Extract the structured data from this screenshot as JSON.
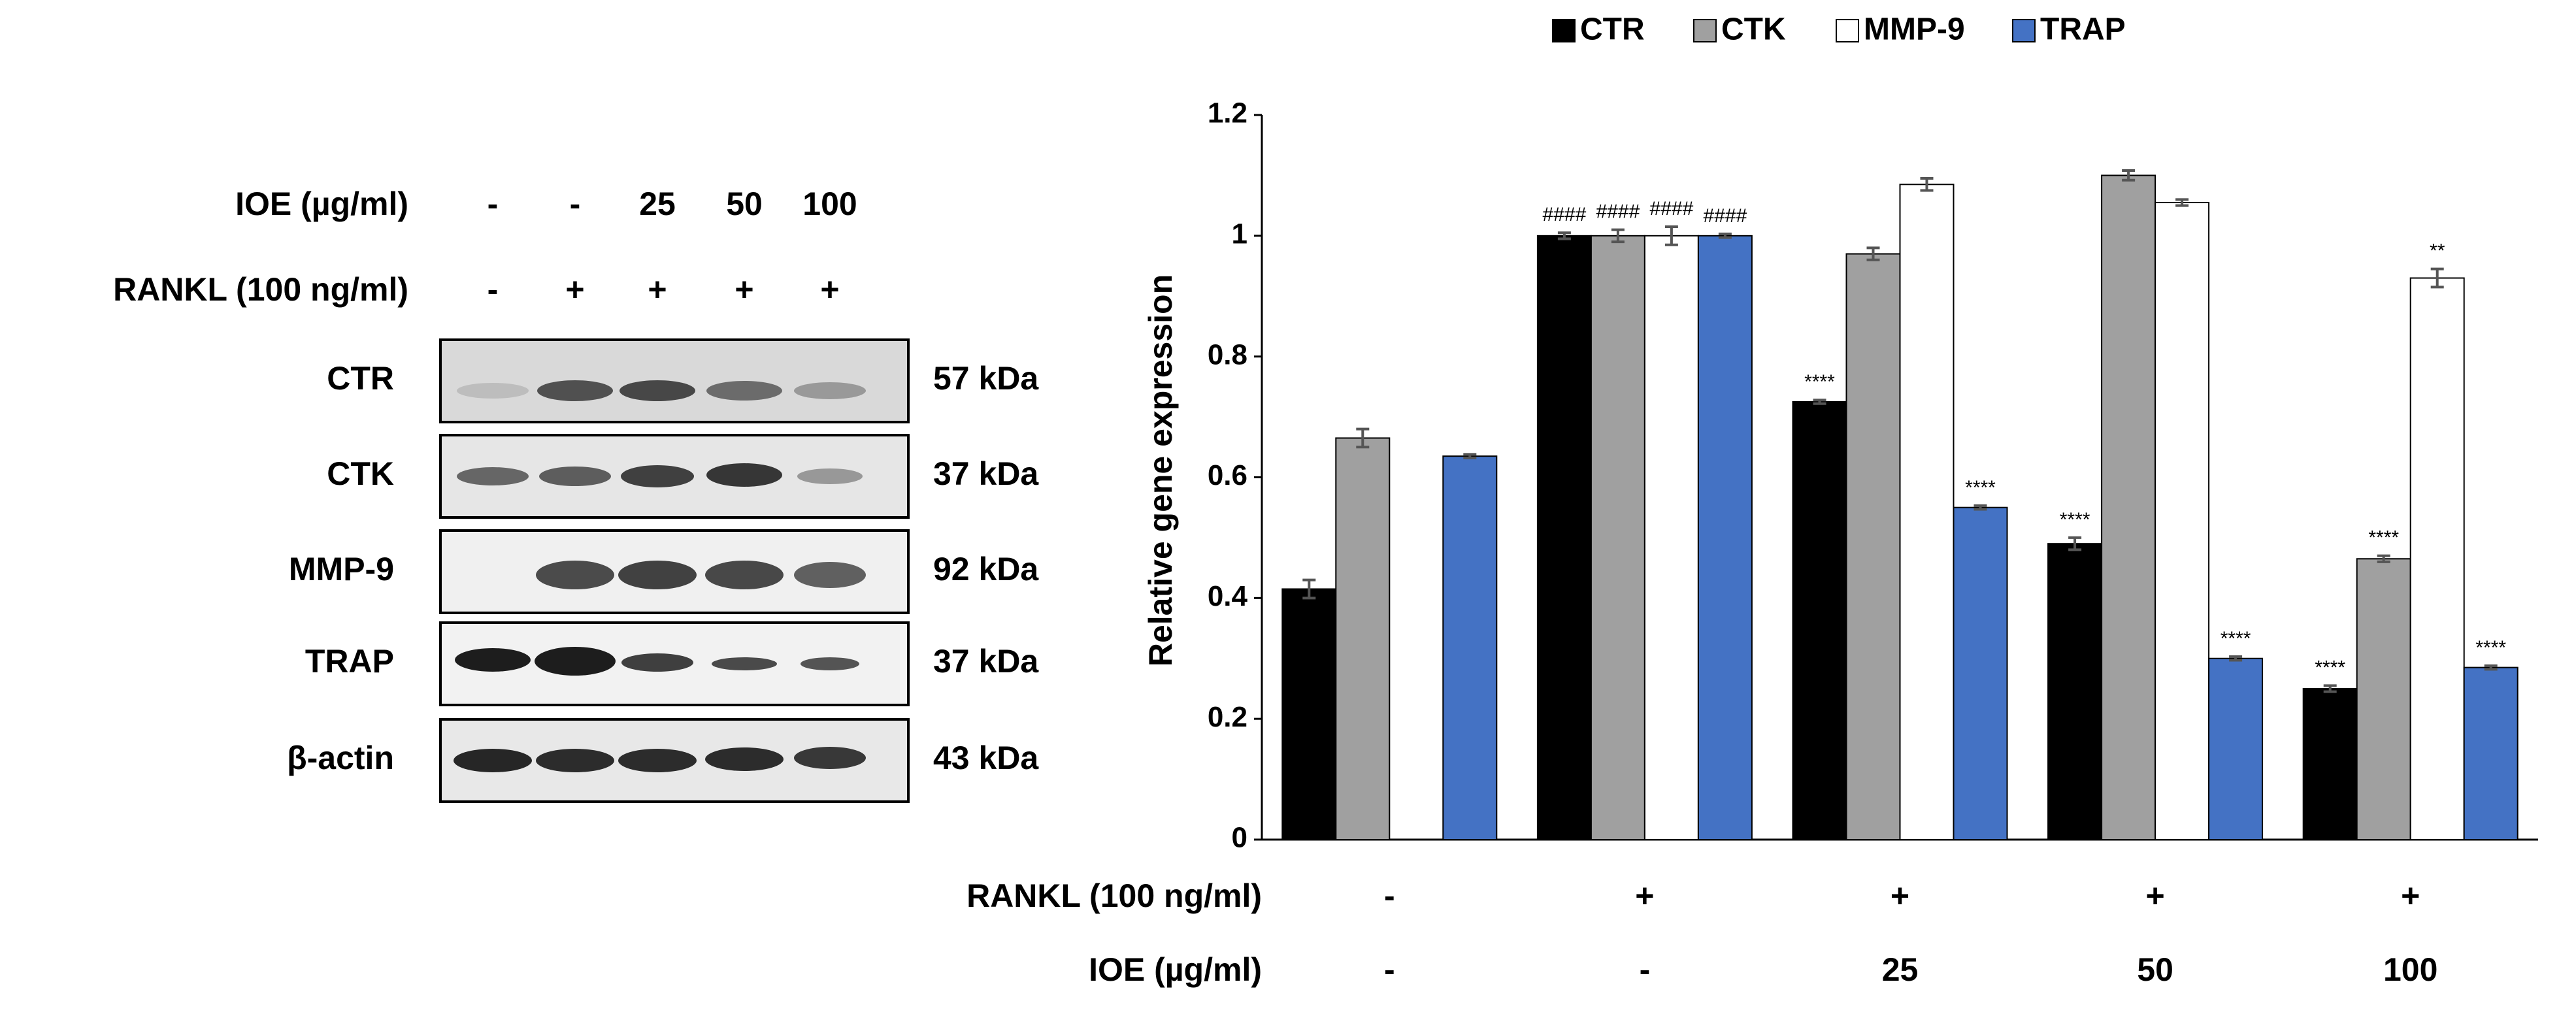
{
  "blot": {
    "conditions": [
      {
        "label": "IOE (µg/ml)",
        "lanes": [
          "-",
          "-",
          "25",
          "50",
          "100"
        ]
      },
      {
        "label": "RANKL (100 ng/ml)",
        "lanes": [
          "-",
          "+",
          "+",
          "+",
          "+"
        ]
      }
    ],
    "rows": [
      {
        "protein": "CTR",
        "size": "57 kDa"
      },
      {
        "protein": "CTK",
        "size": "37 kDa"
      },
      {
        "protein": "MMP-9",
        "size": "92 kDa"
      },
      {
        "protein": "TRAP",
        "size": "37 kDa"
      },
      {
        "protein": "β-actin",
        "size": "43 kDa"
      }
    ]
  },
  "chart_data": {
    "type": "bar",
    "ylabel": "Relative gene expression",
    "category_rows": [
      {
        "label": "RANKL (100 ng/ml)",
        "values": [
          "-",
          "+",
          "+",
          "+",
          "+"
        ]
      },
      {
        "label": "IOE (µg/ml)",
        "values": [
          "-",
          "-",
          "25",
          "50",
          "100"
        ]
      }
    ],
    "series": [
      {
        "name": "CTR",
        "color": "#000000",
        "values": [
          0.415,
          1.0,
          0.725,
          0.49,
          0.25
        ],
        "errors": [
          0.015,
          0.005,
          0.003,
          0.01,
          0.005
        ],
        "annotations": [
          null,
          "####",
          "****",
          "****",
          "****"
        ]
      },
      {
        "name": "CTK",
        "color": "#a0a0a0",
        "values": [
          0.665,
          1.0,
          0.97,
          1.1,
          0.465
        ],
        "errors": [
          0.015,
          0.01,
          0.01,
          0.008,
          0.005
        ],
        "annotations": [
          null,
          "####",
          null,
          null,
          "****"
        ]
      },
      {
        "name": "MMP-9",
        "color": "#ffffff",
        "values": [
          null,
          1.0,
          1.085,
          1.055,
          0.93
        ],
        "errors": [
          null,
          0.015,
          0.01,
          0.005,
          0.015
        ],
        "annotations": [
          null,
          "####",
          null,
          null,
          "**"
        ]
      },
      {
        "name": "TRAP",
        "color": "#4472c4",
        "values": [
          0.635,
          1.0,
          0.55,
          0.3,
          0.285
        ],
        "errors": [
          0.003,
          0.003,
          0.003,
          0.003,
          0.003
        ],
        "annotations": [
          null,
          "####",
          "****",
          "****",
          "****"
        ]
      }
    ],
    "ylim": [
      0,
      1.2
    ],
    "yticks": [
      0,
      0.2,
      0.4,
      0.6,
      0.8,
      1,
      1.2
    ],
    "legend": "top"
  }
}
